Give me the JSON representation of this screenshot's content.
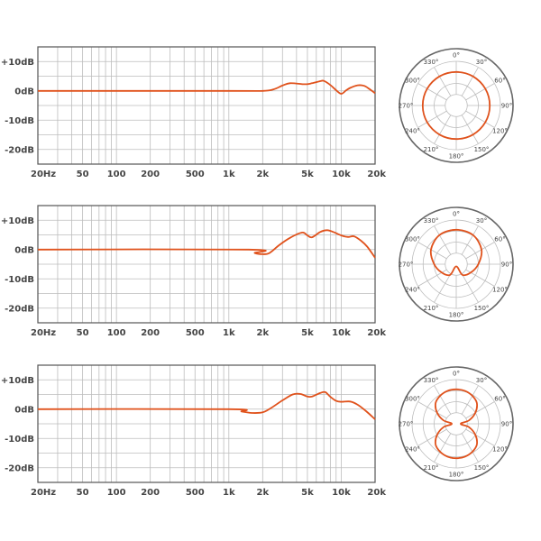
{
  "colors": {
    "curve": "#e0521c",
    "grid": "#bdbdbd",
    "frame": "#555555",
    "ring": "#666666"
  },
  "chart_data": [
    {
      "type": "line",
      "name": "omnidirectional",
      "xscale": "log",
      "xlim": [
        20,
        20000
      ],
      "ylim": [
        -25,
        15
      ],
      "xticks": [
        20,
        50,
        100,
        200,
        500,
        1000,
        2000,
        5000,
        10000,
        20000
      ],
      "xticklabels": [
        "20Hz",
        "50",
        "100",
        "200",
        "500",
        "1k",
        "2k",
        "5k",
        "10k",
        "20k"
      ],
      "yticks": [
        10,
        0,
        -10,
        -20
      ],
      "yticklabels": [
        "+10dB",
        "0dB",
        "-10dB",
        "-20dB"
      ],
      "grid": true,
      "x": [
        20,
        1000,
        2000,
        2500,
        3000,
        3500,
        4500,
        5000,
        5500,
        6500,
        7000,
        8000,
        9000,
        10000,
        11000,
        12000,
        14000,
        16000,
        18000,
        20000
      ],
      "y": [
        0,
        0,
        0,
        0.5,
        1.8,
        2.6,
        2.3,
        2.3,
        2.6,
        3.3,
        3.4,
        2.0,
        0.2,
        -1.0,
        0.1,
        1.0,
        1.9,
        1.7,
        0.5,
        -0.8
      ],
      "polar": {
        "type": "polar",
        "angles": [
          0,
          30,
          60,
          90,
          120,
          150,
          180,
          210,
          240,
          270,
          300,
          330
        ],
        "angle_labels": [
          "0°",
          "30°",
          "60°",
          "90°",
          "120°",
          "150°",
          "180°",
          "210°",
          "240°",
          "270°",
          "300°",
          "330°"
        ],
        "pattern": "omnidirectional",
        "theta": [
          0,
          30,
          60,
          90,
          120,
          150,
          180,
          210,
          240,
          270,
          300,
          330,
          360
        ],
        "r": [
          0.76,
          0.76,
          0.76,
          0.76,
          0.76,
          0.76,
          0.76,
          0.76,
          0.76,
          0.76,
          0.76,
          0.76,
          0.76
        ]
      }
    },
    {
      "type": "line",
      "name": "cardioid",
      "xscale": "log",
      "xlim": [
        20,
        20000
      ],
      "ylim": [
        -25,
        15
      ],
      "xticks": [
        20,
        50,
        100,
        200,
        500,
        1000,
        2000,
        5000,
        10000,
        20000
      ],
      "xticklabels": [
        "20Hz",
        "50",
        "100",
        "200",
        "500",
        "1k",
        "2k",
        "5k",
        "10k",
        "20k"
      ],
      "yticks": [
        10,
        0,
        -10,
        -20
      ],
      "yticklabels": [
        "+10dB",
        "0dB",
        "-10dB",
        "-20dB"
      ],
      "grid": true,
      "x": [
        20,
        1500,
        1700,
        2000,
        2300,
        2800,
        3500,
        4500,
        5000,
        5500,
        6500,
        7500,
        8500,
        10000,
        11500,
        13000,
        15000,
        17000,
        20000
      ],
      "y": [
        0,
        0,
        -1.2,
        -1.6,
        -1.2,
        1.5,
        4.0,
        5.8,
        4.8,
        4.2,
        6.0,
        6.6,
        6.0,
        4.8,
        4.3,
        4.5,
        3.0,
        1.0,
        -2.8
      ],
      "polar": {
        "type": "polar",
        "angles": [
          0,
          30,
          60,
          90,
          120,
          150,
          180,
          210,
          240,
          270,
          300,
          330
        ],
        "angle_labels": [
          "0°",
          "30°",
          "60°",
          "90°",
          "120°",
          "150°",
          "180°",
          "210°",
          "240°",
          "270°",
          "300°",
          "330°"
        ],
        "pattern": "cardioid",
        "theta": [
          0,
          30,
          60,
          90,
          120,
          150,
          180,
          210,
          240,
          270,
          300,
          330,
          360
        ],
        "r": [
          0.78,
          0.76,
          0.66,
          0.5,
          0.38,
          0.28,
          0.05,
          0.28,
          0.38,
          0.5,
          0.66,
          0.76,
          0.78
        ]
      }
    },
    {
      "type": "line",
      "name": "figure-8",
      "xscale": "log",
      "xlim": [
        20,
        20000
      ],
      "ylim": [
        -25,
        15
      ],
      "xticks": [
        20,
        50,
        100,
        200,
        500,
        1000,
        2000,
        5000,
        10000,
        20000
      ],
      "xticklabels": [
        "20Hz",
        "50",
        "100",
        "200",
        "500",
        "1k",
        "2k",
        "5k",
        "10k",
        "20k"
      ],
      "yticks": [
        10,
        0,
        -10,
        -20
      ],
      "yticklabels": [
        "+10dB",
        "0dB",
        "-10dB",
        "-20dB"
      ],
      "grid": true,
      "x": [
        20,
        1000,
        1300,
        1600,
        2000,
        2400,
        3000,
        3700,
        4300,
        5000,
        5500,
        6500,
        7200,
        8000,
        9000,
        10000,
        12000,
        14000,
        17000,
        20000
      ],
      "y": [
        0,
        0,
        -0.8,
        -1.3,
        -1.1,
        0.5,
        3.0,
        5.0,
        5.2,
        4.3,
        4.3,
        5.5,
        5.8,
        4.2,
        2.8,
        2.5,
        2.6,
        1.5,
        -1.0,
        -3.5
      ],
      "polar": {
        "type": "polar",
        "angles": [
          0,
          30,
          60,
          90,
          120,
          150,
          180,
          210,
          240,
          270,
          300,
          330
        ],
        "angle_labels": [
          "0°",
          "30°",
          "60°",
          "90°",
          "120°",
          "150°",
          "180°",
          "210°",
          "240°",
          "270°",
          "300°",
          "330°"
        ],
        "pattern": "figure-8",
        "theta": [
          0,
          15,
          30,
          45,
          60,
          75,
          90,
          105,
          120,
          135,
          150,
          165,
          180,
          195,
          210,
          225,
          240,
          255,
          270,
          285,
          300,
          315,
          330,
          345,
          360
        ],
        "r": [
          0.78,
          0.77,
          0.73,
          0.66,
          0.5,
          0.3,
          0.1,
          0.3,
          0.5,
          0.66,
          0.73,
          0.77,
          0.78,
          0.77,
          0.73,
          0.66,
          0.5,
          0.3,
          0.1,
          0.3,
          0.5,
          0.66,
          0.73,
          0.77,
          0.78
        ]
      }
    }
  ]
}
